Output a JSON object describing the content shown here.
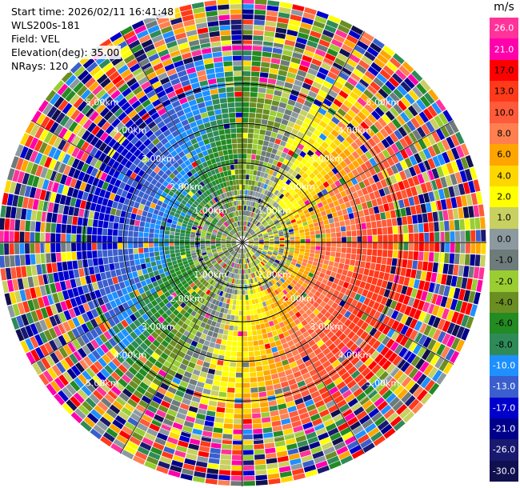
{
  "info": {
    "start_time": "Start time: 2026/02/11 16:41:48",
    "site": "WLS200s-181",
    "field": "Field: VEL",
    "elevation": "Elevation(deg): 35.00",
    "nrays": "NRays: 120"
  },
  "colorbar": {
    "unit": "m/s",
    "levels": [
      {
        "label": "26.0",
        "color": "#ff3399"
      },
      {
        "label": "21.0",
        "color": "#ff00aa"
      },
      {
        "label": "17.0",
        "color": "#ff0000"
      },
      {
        "label": "13.0",
        "color": "#ff3a1a"
      },
      {
        "label": "10.0",
        "color": "#ff5a3a"
      },
      {
        "label": "8.0",
        "color": "#ff7f50"
      },
      {
        "label": "6.0",
        "color": "#ffa500"
      },
      {
        "label": "4.0",
        "color": "#ffd700"
      },
      {
        "label": "2.0",
        "color": "#ffff00"
      },
      {
        "label": "1.0",
        "color": "#c8d060"
      },
      {
        "label": "0.0",
        "color": "#8c9aa0"
      },
      {
        "label": "-1.0",
        "color": "#6e7b7b"
      },
      {
        "label": "-2.0",
        "color": "#9acd32"
      },
      {
        "label": "-4.0",
        "color": "#6b8e23"
      },
      {
        "label": "-6.0",
        "color": "#228b22"
      },
      {
        "label": "-8.0",
        "color": "#2e8b57"
      },
      {
        "label": "-10.0",
        "color": "#1e90ff"
      },
      {
        "label": "-13.0",
        "color": "#3a5fcd"
      },
      {
        "label": "-17.0",
        "color": "#0000cd"
      },
      {
        "label": "-21.0",
        "color": "#00008b"
      },
      {
        "label": "-26.0",
        "color": "#191970"
      },
      {
        "label": "-30.0",
        "color": "#101050"
      }
    ]
  },
  "chart_data": {
    "type": "heatmap",
    "plot_kind": "PPI polar scan",
    "field": "VEL",
    "n_rays": 120,
    "range_rings_km": [
      "1.00km",
      "2.00km",
      "3.00km",
      "4.00km",
      "5.00km"
    ],
    "max_range_km": 5.0,
    "pattern": "positive velocities (yellow to red) on the east/north-east side, negative (green to blue) on the west/south-west side, noisy multicolour returns beyond about 4 km"
  }
}
